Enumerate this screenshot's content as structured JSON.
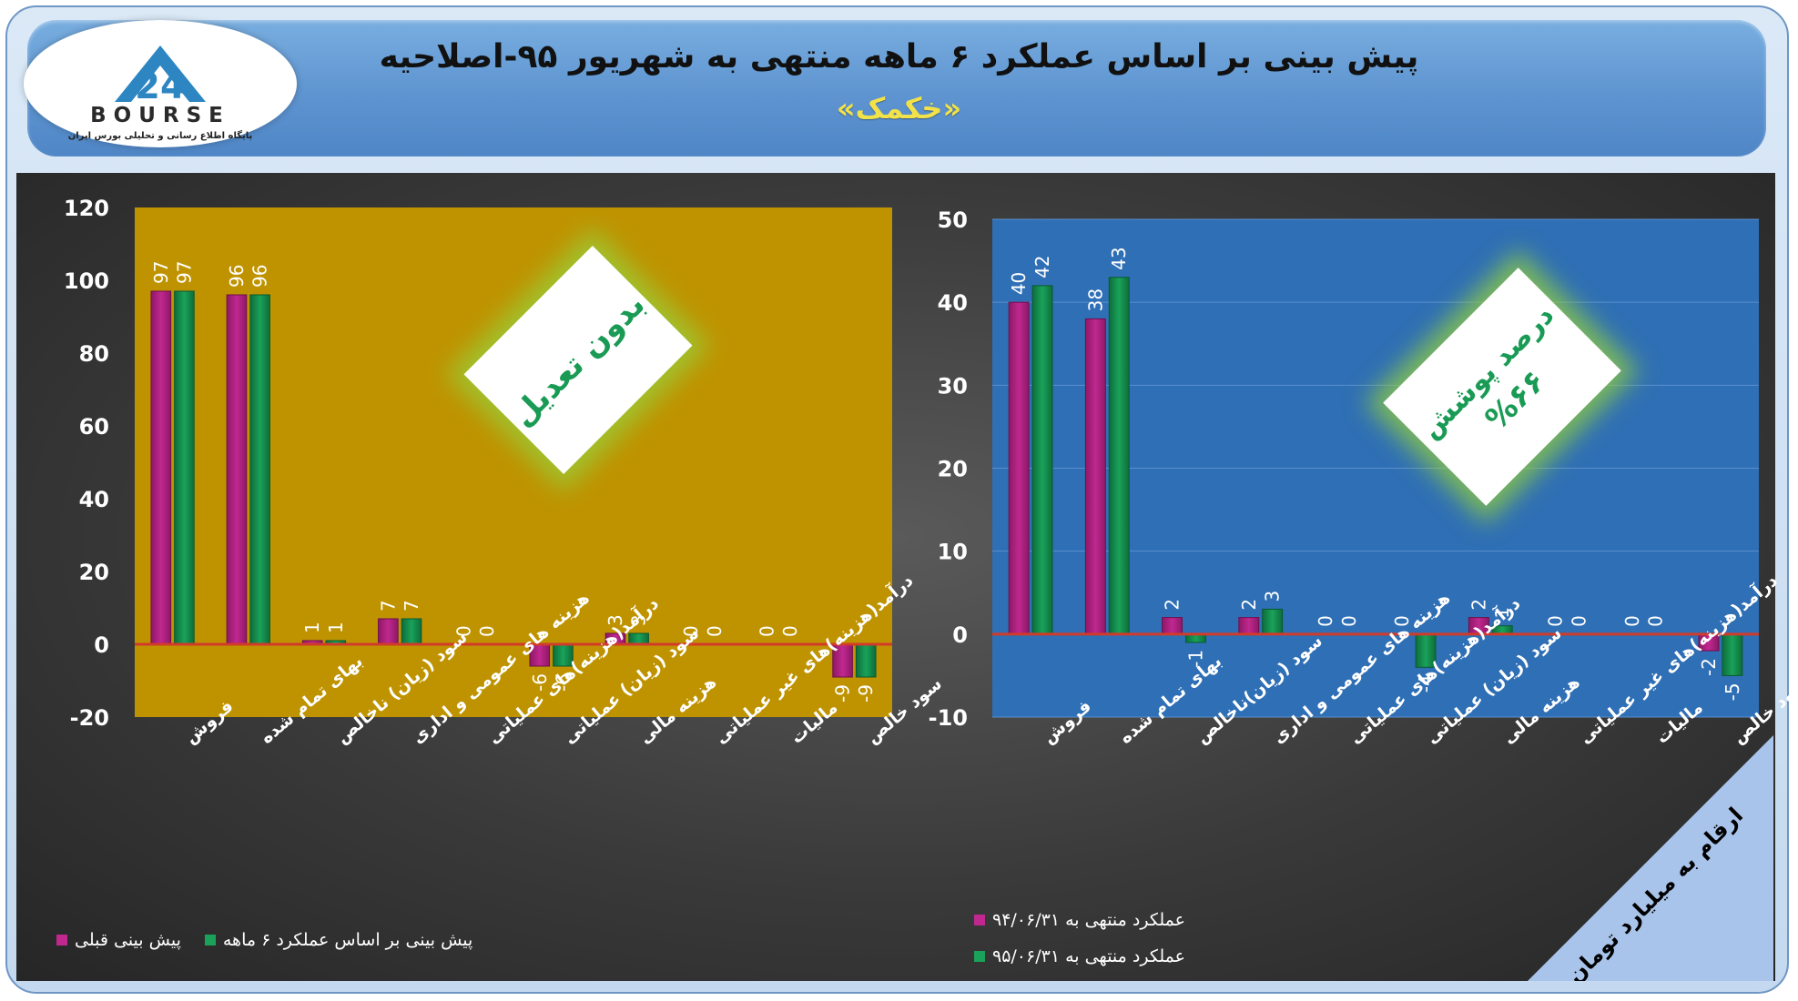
{
  "header": {
    "title": "پیش بینی بر اساس عملکرد ۶ ماهه منتهی به شهریور ۹۵-اصلاحیه",
    "subtitle": "«خکمک»",
    "logo_name": "BOURSE",
    "logo_number": "24",
    "logo_tagline": "پایگاه اطلاع رسانی و تحلیلی بورس ایران"
  },
  "colors": {
    "series_magenta": "#c0288f",
    "series_green": "#1aa25a",
    "left_plot_bg": "#bf9300",
    "right_plot_bg": "#2f6fb5",
    "zero_line": "#d23a2a"
  },
  "corner_note": "ارقام به میلیارد تومان",
  "chart_data": [
    {
      "type": "bar",
      "panel": "left",
      "categories": [
        "فروش",
        "بهای تمام شده",
        "سود (زیان) ناخالص",
        "هزینه های عمومی و اداری",
        "درآمد(هزینه)های عملیاتی",
        "سود (زیان) عملیاتی",
        "هزینه مالی",
        "درآمد(هزینه)های غیر عملیاتی",
        "مالیات",
        "سود خالص"
      ],
      "series": [
        {
          "name": "پیش بینی قبلی",
          "color": "#c0288f",
          "values": [
            97,
            96,
            1,
            7,
            0,
            -6,
            3,
            0,
            0,
            -9
          ]
        },
        {
          "name": "پیش بینی بر اساس عملکرد ۶ ماهه",
          "color": "#1aa25a",
          "values": [
            97,
            96,
            1,
            7,
            0,
            -6,
            3,
            0,
            0,
            -9
          ]
        }
      ],
      "ylim": [
        -20,
        120
      ],
      "yticks": [
        -20,
        0,
        20,
        40,
        60,
        80,
        100,
        120
      ],
      "grid": false,
      "legend": "bottom",
      "badge": {
        "line1": "بدون تعدیل",
        "line2": ""
      }
    },
    {
      "type": "bar",
      "panel": "right",
      "categories": [
        "فروش",
        "بهای تمام شده",
        "سود (زیان)ناخالص",
        "هزینه های عمومی و اداری",
        "درآمد(هزینه)های عملیاتی",
        "سود (زیان) عملیاتی",
        "هزینه مالی",
        "درآمد(هزینه)های غیر عملیاتی",
        "مالیات",
        "سود خالص"
      ],
      "series": [
        {
          "name": "عملکرد منتهی به ۹۴/۰۶/۳۱",
          "color": "#c0288f",
          "values": [
            40,
            38,
            2,
            2,
            0,
            0,
            2,
            0,
            0,
            -2
          ]
        },
        {
          "name": "عملکرد منتهی به ۹۵/۰۶/۳۱",
          "color": "#1aa25a",
          "values": [
            42,
            43,
            -1,
            3,
            0,
            -4,
            1,
            0,
            0,
            -5
          ]
        }
      ],
      "ylim": [
        -10,
        50
      ],
      "yticks": [
        -10,
        0,
        10,
        20,
        30,
        40,
        50
      ],
      "grid": true,
      "legend": "bottom-left",
      "badge": {
        "line1": "درصد پوشش",
        "line2": "%۶۶"
      }
    }
  ]
}
